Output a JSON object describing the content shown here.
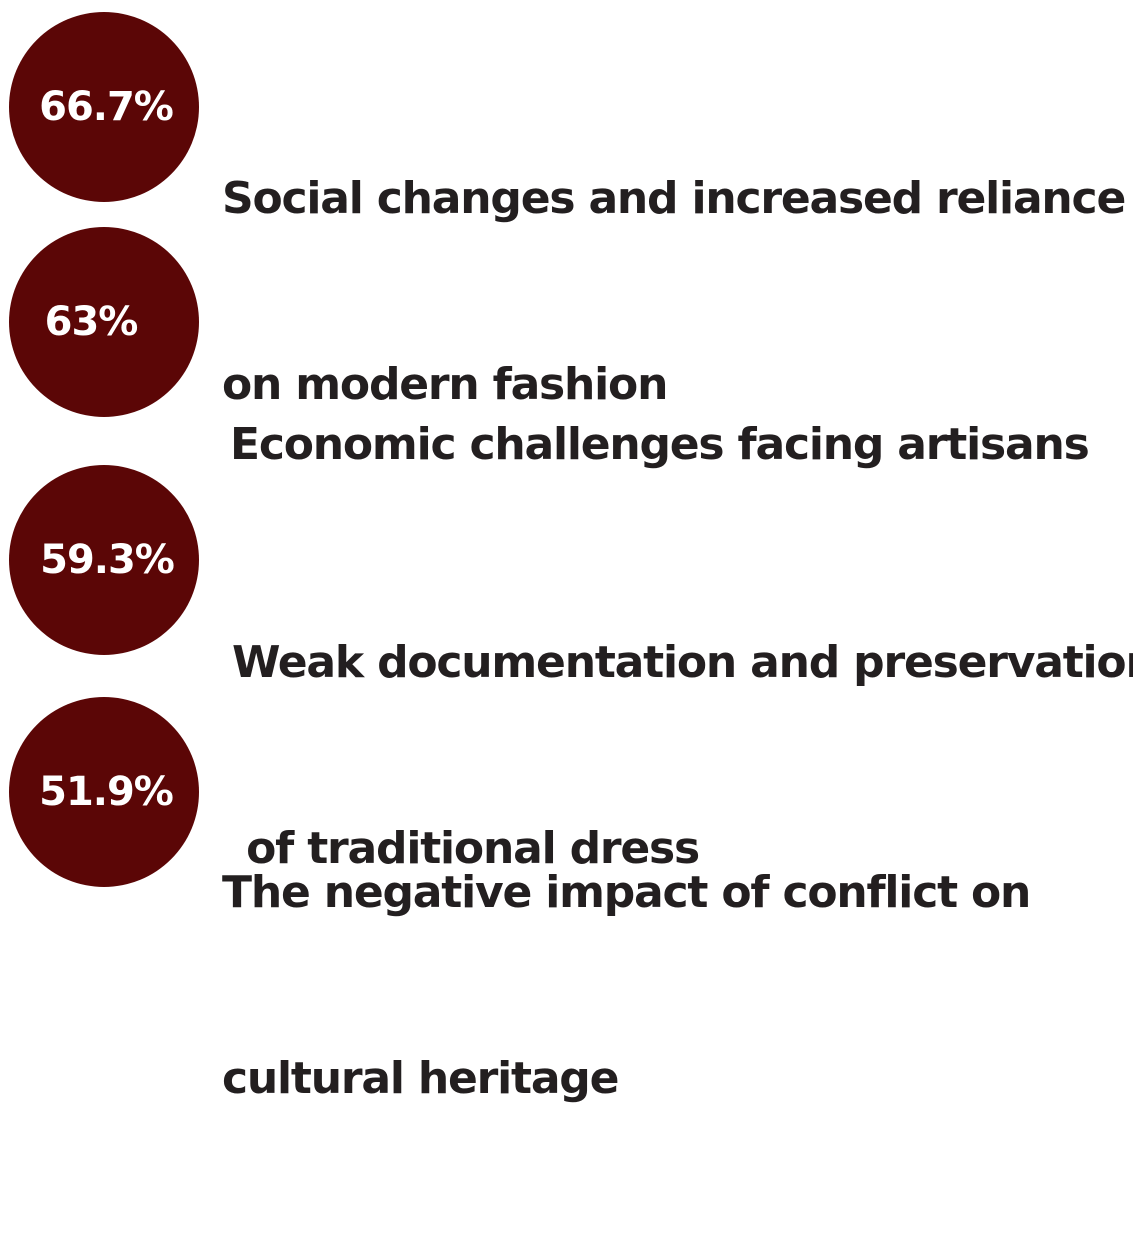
{
  "colors": {
    "circle": "#5b0606",
    "text": "#231f20",
    "percent_text": "#ffffff"
  },
  "chart_data": {
    "type": "table",
    "title": "",
    "items": [
      {
        "value": 66.7,
        "value_label": "66.7%",
        "label_lines": [
          "Social changes and increased reliance",
          "on modern fashion"
        ]
      },
      {
        "value": 63,
        "value_label": "63%",
        "label_lines": [
          "Economic challenges facing artisans"
        ]
      },
      {
        "value": 59.3,
        "value_label": "59.3%",
        "label_lines": [
          "Weak documentation and preservation",
          " of traditional dress"
        ]
      },
      {
        "value": 51.9,
        "value_label": "51.9%",
        "label_lines": [
          "The negative impact of conflict on",
          "cultural heritage"
        ]
      }
    ]
  }
}
